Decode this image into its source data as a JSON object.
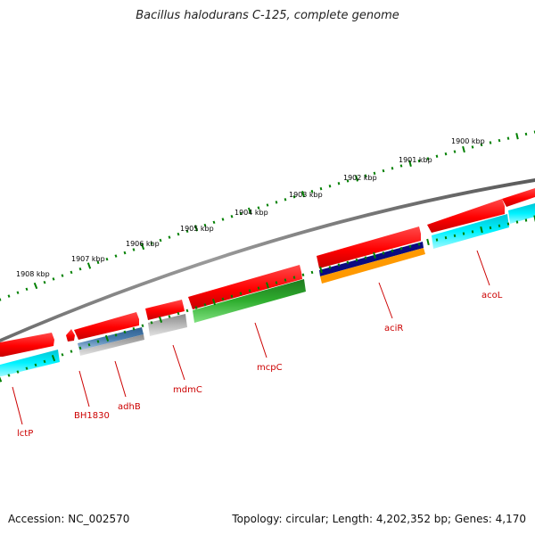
{
  "figure": {
    "title": "Bacillus halodurans C-125, complete genome",
    "accession_label": "Accession:",
    "accession": "NC_002570",
    "summary": "Topology: circular; Length: 4,202,352 bp; Genes: 4,170"
  },
  "kbp_labels": [
    "1900 kbp",
    "1901 kbp",
    "1902 kbp",
    "1903 kbp",
    "1904 kbp",
    "1905 kbp",
    "1906 kbp",
    "1907 kbp",
    "1908 kbp"
  ],
  "gene_labels": [
    {
      "id": "acoL",
      "name": "acoL"
    },
    {
      "id": "aciR",
      "name": "aciR"
    },
    {
      "id": "mcpC",
      "name": "mcpC"
    },
    {
      "id": "mdmC",
      "name": "mdmC"
    },
    {
      "id": "adhB",
      "name": "adhB"
    },
    {
      "id": "BH1830",
      "name": "BH1830"
    },
    {
      "id": "lctP",
      "name": "lctP"
    }
  ],
  "colors": {
    "backbone": "#808080",
    "forward_gene": "#ff0000",
    "tick": "#008000",
    "label": "#cc0000",
    "cyan": "#00e5f0",
    "green": "#2ea82e",
    "navy": "#0a0a80",
    "orange": "#ff9900",
    "steel_blue": "#4a7fb0",
    "grey": "#b8b8b8"
  }
}
